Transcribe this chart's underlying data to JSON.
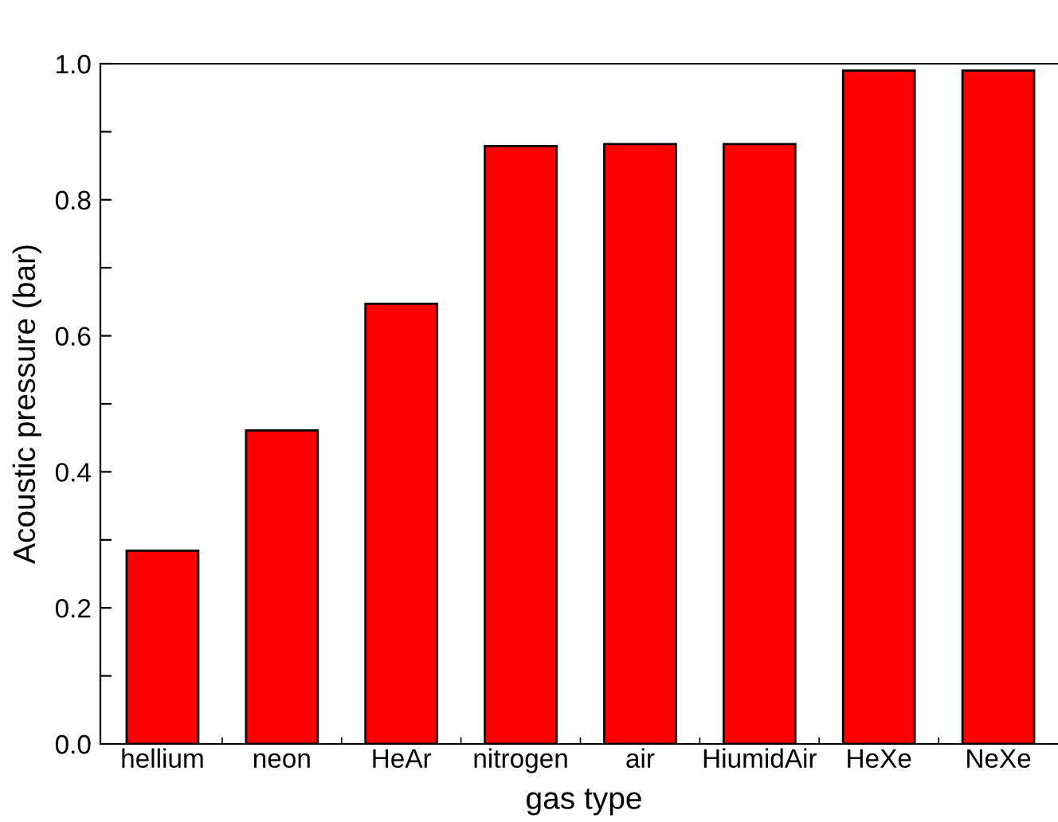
{
  "chart_data": {
    "type": "bar",
    "xlabel": "gas type",
    "ylabel": "Acoustic pressure (bar)",
    "categories": [
      "hellium",
      "neon",
      "HeAr",
      "nitrogen",
      "air",
      "HiumidAir",
      "HeXe",
      "NeXe"
    ],
    "values": [
      0.284,
      0.461,
      0.647,
      0.879,
      0.882,
      0.882,
      0.99,
      0.99
    ],
    "color": "#ff0000",
    "ylim": [
      0,
      1.0
    ],
    "yticks": [
      {
        "value": 0.0,
        "label": "0.0"
      },
      {
        "value": 0.1,
        "label": null
      },
      {
        "value": 0.2,
        "label": "0.2"
      },
      {
        "value": 0.3,
        "label": null
      },
      {
        "value": 0.4,
        "label": "0.4"
      },
      {
        "value": 0.5,
        "label": null
      },
      {
        "value": 0.6,
        "label": "0.6"
      },
      {
        "value": 0.7,
        "label": null
      },
      {
        "value": 0.8,
        "label": "0.8"
      },
      {
        "value": 0.9,
        "label": null
      },
      {
        "value": 1.0,
        "label": "1.0"
      }
    ],
    "grid": false
  }
}
